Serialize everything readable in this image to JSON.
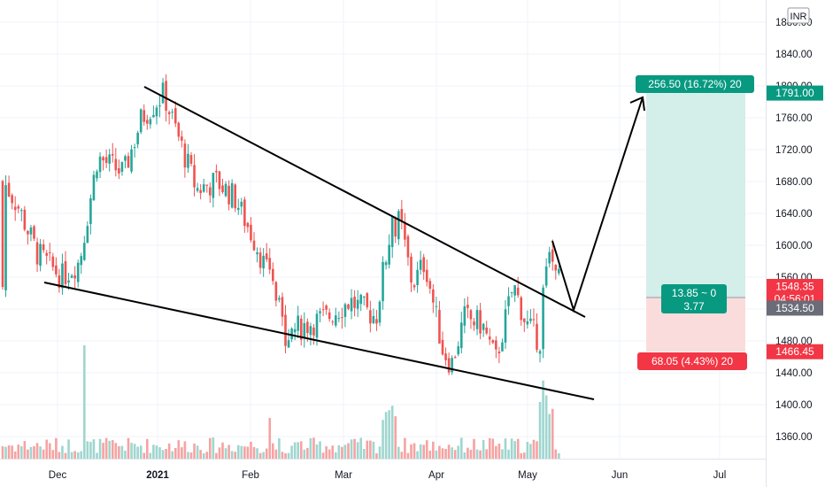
{
  "chart_data": {
    "type": "candlestick",
    "currency": "INR",
    "y_ticks": [
      "1360.00",
      "1400.00",
      "1440.00",
      "1480.00",
      "1520.00",
      "1560.00",
      "1600.00",
      "1640.00",
      "1680.00",
      "1720.00",
      "1760.00",
      "1800.00",
      "1840.00",
      "1880.00"
    ],
    "x_ticks": [
      "Dec",
      "2021",
      "Feb",
      "Mar",
      "Apr",
      "May",
      "Jun",
      "Jul"
    ],
    "ylim": [
      1330,
      1895
    ],
    "colors": {
      "up": "#26a69a",
      "down": "#ef5350",
      "vol_up": "#9fd6cf",
      "vol_down": "#f5a3a2",
      "profit_zone": "#d4eeea",
      "loss_zone": "#fbdcdc",
      "grid": "#f0f3fa",
      "axis_text": "#131722"
    },
    "price_labels": {
      "target": "1791.00",
      "last": "1548.35",
      "countdown": "04:56:01",
      "entry": "1534.50",
      "stop": "1466.45"
    },
    "position_tool": {
      "profit_label": "256.50 (16.72%) 20",
      "loss_label": "68.05 (4.43%) 20",
      "center_line1": "13.85 ~ 0",
      "center_line2": "3.77"
    },
    "annotations": [
      "falling wedge trendlines",
      "projected breakout arrow"
    ],
    "candles_key_points": [
      {
        "date": "Dec",
        "close": 1660
      },
      {
        "date": "Jan (peak)",
        "close": 1790
      },
      {
        "date": "Mar (low)",
        "close": 1490
      },
      {
        "date": "Mar (swing high)",
        "close": 1630
      },
      {
        "date": "Apr (low)",
        "close": 1440
      },
      {
        "date": "May",
        "close": 1548.35
      }
    ]
  }
}
